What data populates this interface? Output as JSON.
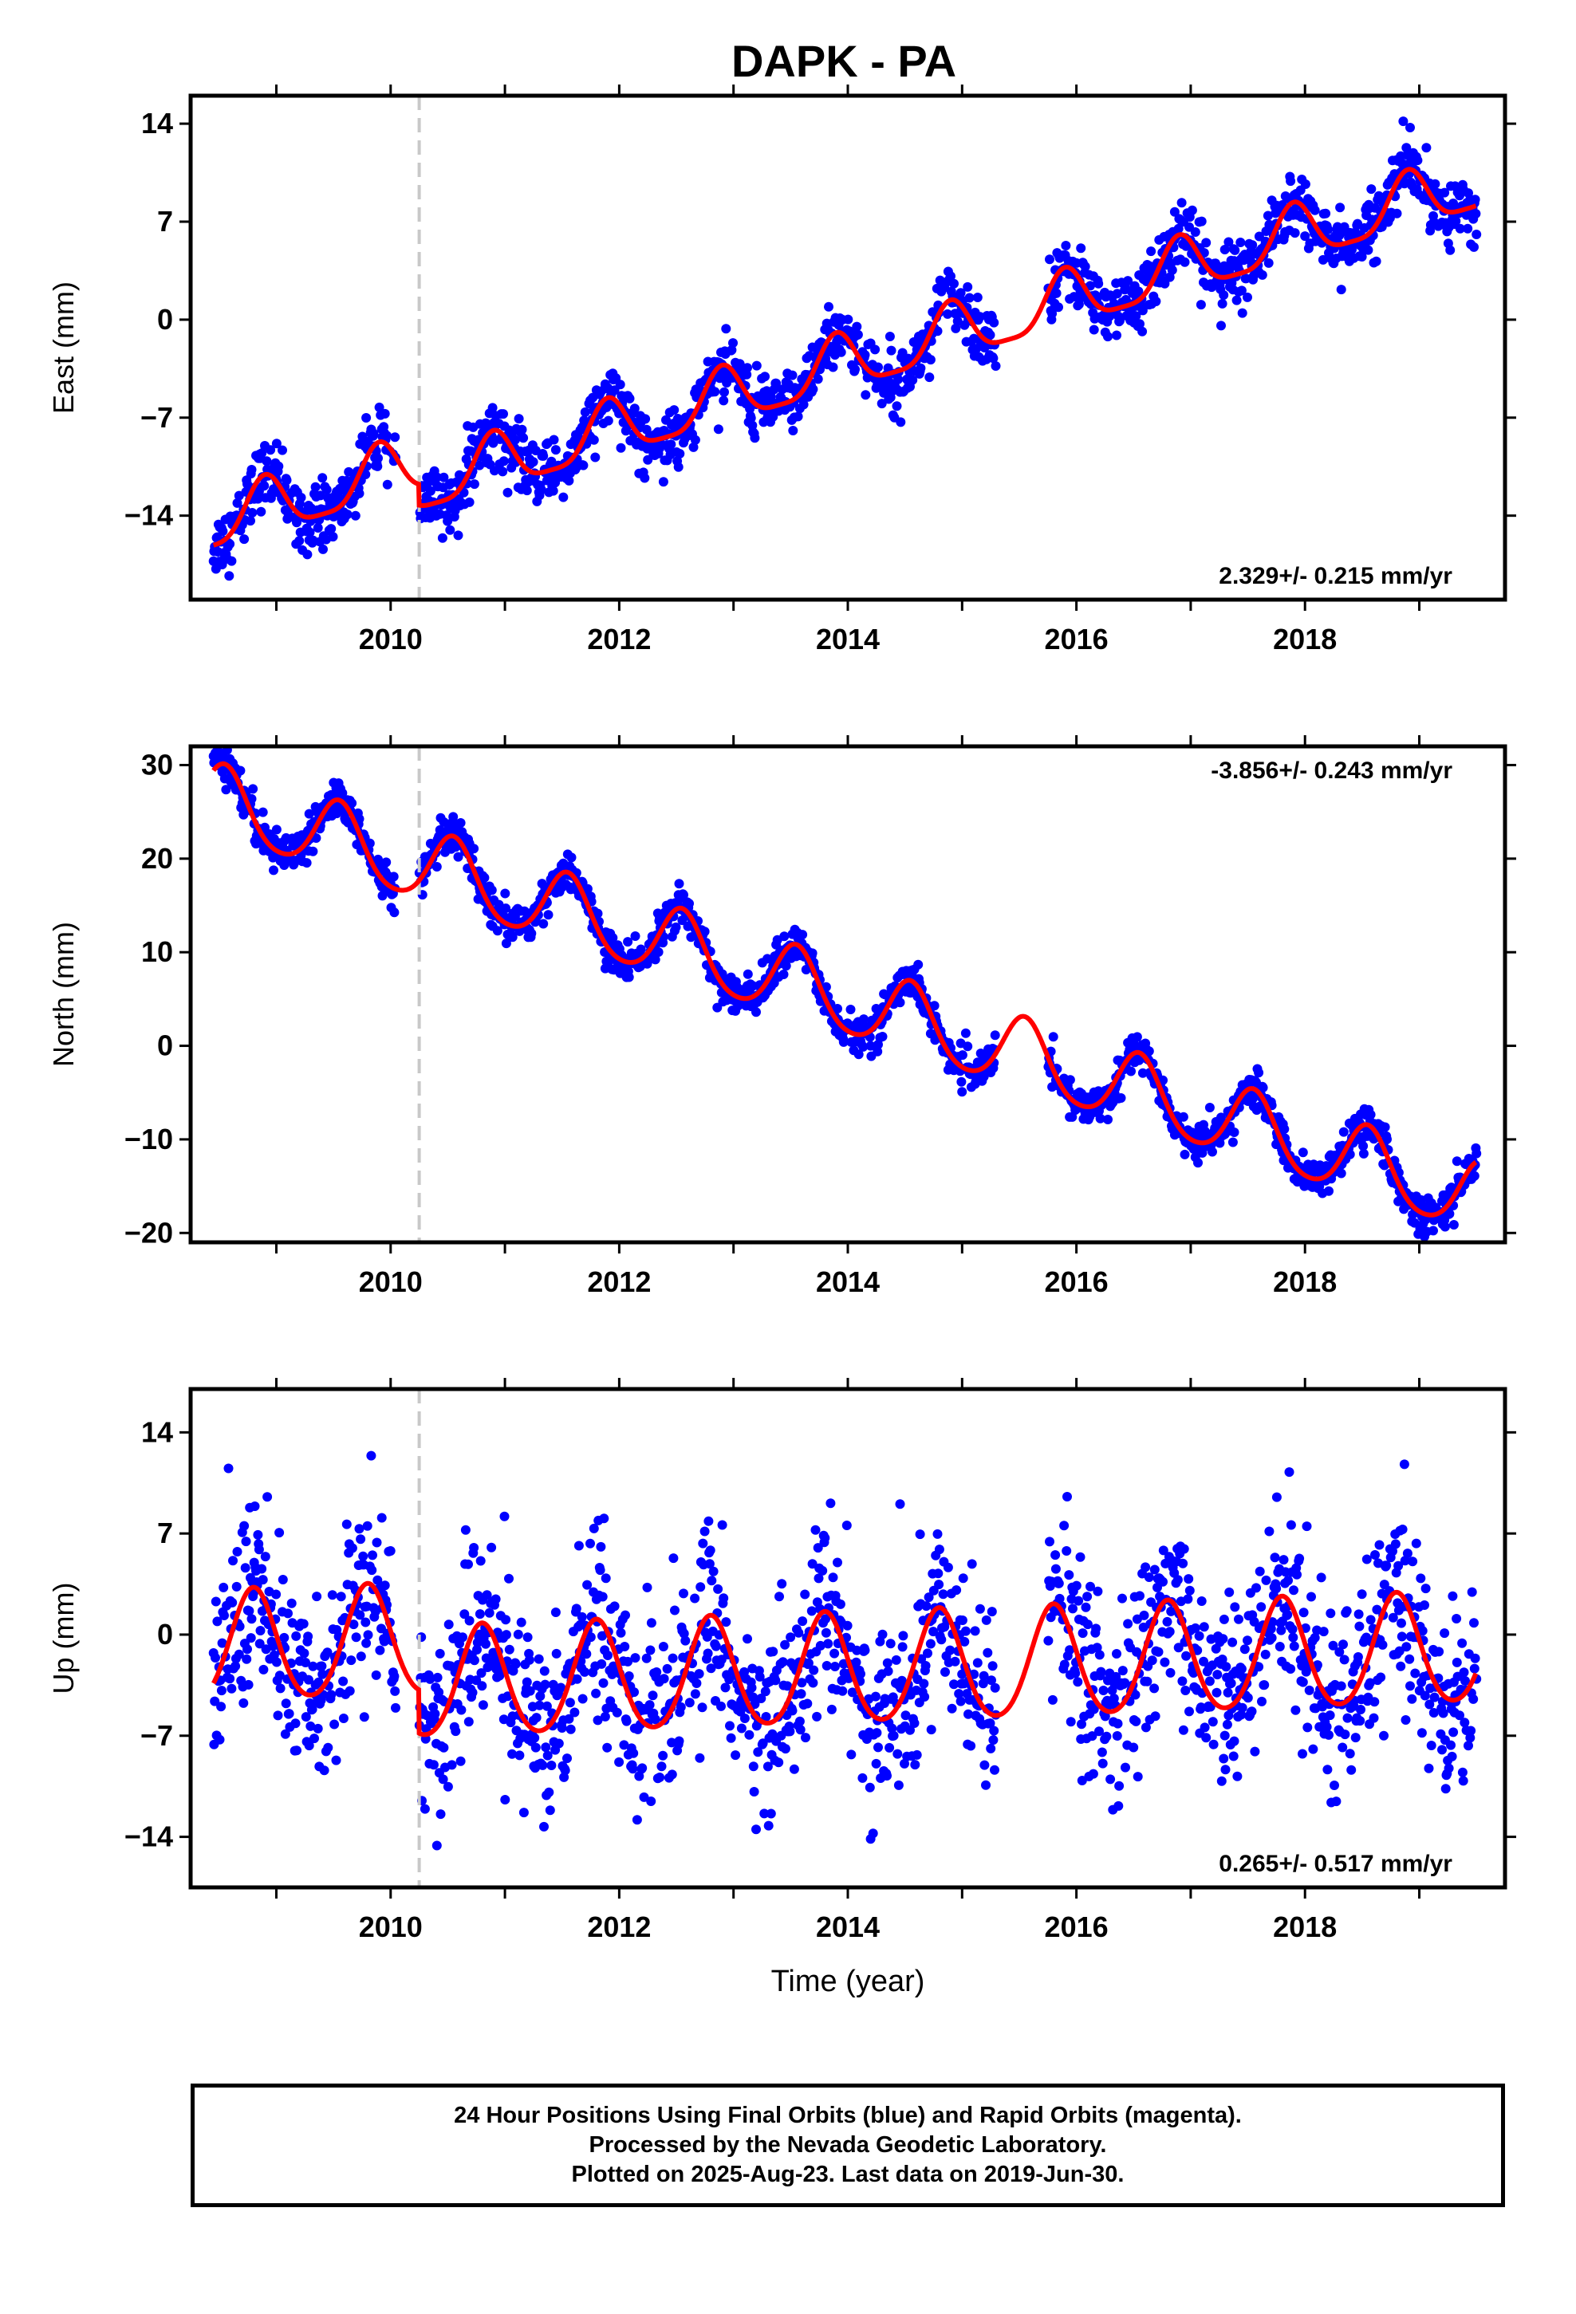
{
  "title": "DAPK - PA",
  "colors": {
    "data_points": "#0000ff",
    "model_fit": "#ff0000",
    "equipment_change": "#c8c8c8",
    "axes": "#000000"
  },
  "chart_data": [
    {
      "type": "scatter",
      "component": "East",
      "ylabel": "East (mm)",
      "xlabel": "",
      "ylim": [
        -20,
        16
      ],
      "yticks": [
        -14,
        -7,
        0,
        7,
        14
      ],
      "xlim": [
        2008.25,
        2019.75
      ],
      "xticks": [
        2010,
        2012,
        2014,
        2016,
        2018
      ],
      "rate_label": "2.329+/- 0.215 mm/yr",
      "rate_label_position": "bottom-right",
      "trend": {
        "rate": 2.329,
        "offset_at_2008_5": -14.5,
        "annual_amplitude": 2.0,
        "annual_phase_peak": 0.9,
        "semiannual_amplitude": 0.5,
        "step": {
          "at": 2010.25,
          "amount": -1.5
        }
      },
      "scatter_sigma": 1.1,
      "data_start": 2008.45,
      "data_end": 2019.5,
      "gaps": [
        [
          2010.05,
          2010.25
        ],
        [
          2015.3,
          2015.75
        ]
      ],
      "equipment_change_epoch": 2010.25
    },
    {
      "type": "scatter",
      "component": "North",
      "ylabel": "North (mm)",
      "xlabel": "",
      "ylim": [
        -21,
        32
      ],
      "yticks": [
        -20,
        -10,
        0,
        10,
        20,
        30
      ],
      "xlim": [
        2008.25,
        2019.75
      ],
      "xticks": [
        2010,
        2012,
        2014,
        2016,
        2018
      ],
      "rate_label": "-3.856+/- 0.243 mm/yr",
      "rate_label_position": "top-right",
      "trend": {
        "rate": -3.856,
        "offset_at_2008_5": 26.0,
        "annual_amplitude": 3.8,
        "annual_phase_peak": 0.55,
        "semiannual_amplitude": 0.5,
        "step": {
          "at": 2010.25,
          "amount": 0.0
        }
      },
      "scatter_sigma": 1.0,
      "data_start": 2008.45,
      "data_end": 2019.5,
      "gaps": [
        [
          2010.05,
          2010.25
        ],
        [
          2015.3,
          2015.75
        ]
      ],
      "equipment_change_epoch": 2010.25
    },
    {
      "type": "scatter",
      "component": "Up",
      "ylabel": "Up (mm)",
      "xlabel": "Time (year)",
      "ylim": [
        -17.5,
        17
      ],
      "yticks": [
        -14,
        -7,
        0,
        7,
        14
      ],
      "xlim": [
        2008.25,
        2019.75
      ],
      "xticks": [
        2010,
        2012,
        2014,
        2016,
        2018
      ],
      "rate_label": "0.265+/- 0.517 mm/yr",
      "rate_label_position": "bottom-right",
      "trend": {
        "rate": 0.265,
        "offset_at_2008_5": -1.0,
        "annual_amplitude": 3.8,
        "annual_phase_peak": 0.8,
        "semiannual_amplitude": 0.4,
        "step": {
          "at": 2010.25,
          "amount": -3.0
        }
      },
      "scatter_sigma": 3.2,
      "data_start": 2008.45,
      "data_end": 2019.5,
      "gaps": [
        [
          2010.05,
          2010.25
        ],
        [
          2015.3,
          2015.75
        ]
      ],
      "equipment_change_epoch": 2010.25
    }
  ],
  "footer": {
    "line1": "24 Hour Positions Using Final Orbits (blue) and Rapid Orbits (magenta).",
    "line2": "Processed by the Nevada Geodetic Laboratory.",
    "line3": "Plotted on 2025-Aug-23. Last data on 2019-Jun-30."
  }
}
